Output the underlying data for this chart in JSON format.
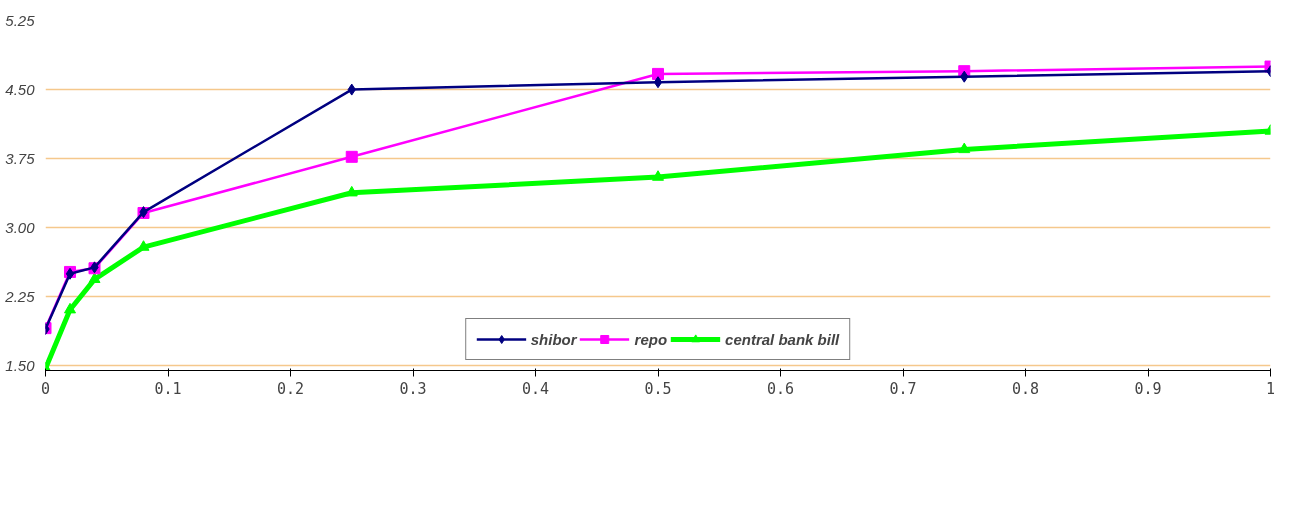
{
  "chart_data": {
    "type": "line",
    "x": [
      0,
      0.02,
      0.04,
      0.08,
      0.25,
      0.5,
      0.75,
      1
    ],
    "series": [
      {
        "name": "shibor",
        "color": "#000080",
        "marker": "diamond",
        "values": [
          1.9,
          2.5,
          2.57,
          3.17,
          4.5,
          4.58,
          4.64,
          4.7
        ]
      },
      {
        "name": "repo",
        "color": "#ff00ff",
        "marker": "square",
        "values": [
          1.91,
          2.52,
          2.56,
          3.16,
          3.77,
          4.67,
          4.7,
          4.75
        ]
      },
      {
        "name": "central bank bill",
        "color": "#00ff00",
        "marker": "triangle",
        "values": [
          1.47,
          2.11,
          2.44,
          2.79,
          3.38,
          3.55,
          3.85,
          4.05
        ]
      }
    ],
    "xlim": [
      0,
      1
    ],
    "xticks": [
      0,
      0.1,
      0.2,
      0.3,
      0.4,
      0.5,
      0.6,
      0.7,
      0.8,
      0.9,
      1
    ],
    "ylim": [
      1.45,
      5.25
    ],
    "yticks": [
      {
        "value": 1.5,
        "label": "1.50"
      },
      2.25,
      {
        "value": 3,
        "label": "3.00"
      },
      3.75,
      {
        "value": 4.5,
        "label": "4.50"
      },
      5.25
    ],
    "grid": "y",
    "legend": "bottom",
    "line_style": "solid"
  }
}
